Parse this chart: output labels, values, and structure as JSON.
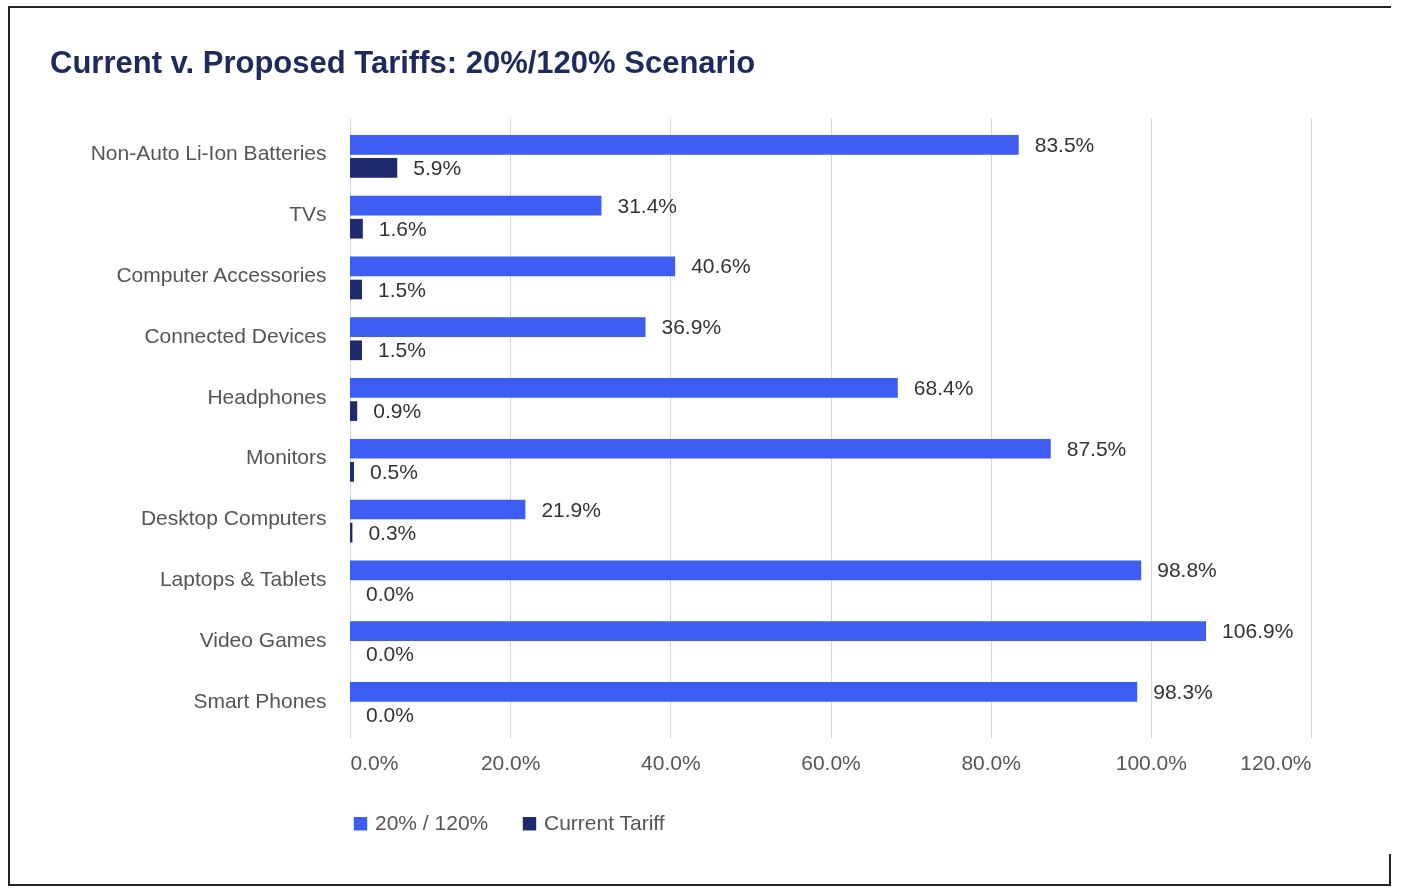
{
  "chart_data": {
    "type": "bar",
    "orientation": "horizontal",
    "title": "Current v. Proposed Tariffs: 20%/120% Scenario",
    "categories": [
      "Non-Auto Li-Ion Batteries",
      "TVs",
      "Computer Accessories",
      "Connected Devices",
      "Headphones",
      "Monitors",
      "Desktop Computers",
      "Laptops & Tablets",
      "Video Games",
      "Smart Phones"
    ],
    "series": [
      {
        "name": "20% / 120%",
        "color": "#3d5cf2",
        "values": [
          83.5,
          31.4,
          40.6,
          36.9,
          68.4,
          87.5,
          21.9,
          98.8,
          106.9,
          98.3
        ],
        "value_labels": [
          "83.5%",
          "31.4%",
          "40.6%",
          "36.9%",
          "68.4%",
          "87.5%",
          "21.9%",
          "98.8%",
          "106.9%",
          "98.3%"
        ]
      },
      {
        "name": "Current Tariff",
        "color": "#1f2a6e",
        "values": [
          5.9,
          1.6,
          1.5,
          1.5,
          0.9,
          0.5,
          0.3,
          0.0,
          0.0,
          0.0
        ],
        "value_labels": [
          "5.9%",
          "1.6%",
          "1.5%",
          "1.5%",
          "0.9%",
          "0.5%",
          "0.3%",
          "0.0%",
          "0.0%",
          "0.0%"
        ]
      }
    ],
    "xlim": [
      0,
      120
    ],
    "xticks": [
      {
        "value": 0,
        "label": "0.0%"
      },
      {
        "value": 20,
        "label": "20.0%"
      },
      {
        "value": 40,
        "label": "40.0%"
      },
      {
        "value": 60,
        "label": "60.0%"
      },
      {
        "value": 80,
        "label": "80.0%"
      },
      {
        "value": 100,
        "label": "100.0%"
      },
      {
        "value": 120,
        "label": "120.0%"
      }
    ],
    "grid": "x",
    "legend": "bottom"
  }
}
